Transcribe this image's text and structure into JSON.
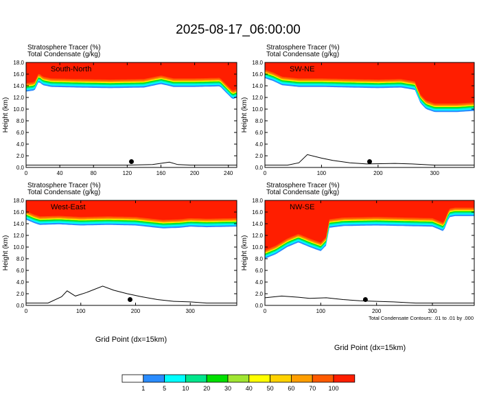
{
  "figure": {
    "title": "2025-08-17_06:00:00",
    "var1": "Stratosphere Tracer   (%)",
    "var2": "Total Condensate   (g/kg)",
    "xlabel": "Grid Point (dx=15km)",
    "footnote": "Total Condensate Contours: .01 to .01 by .000"
  },
  "colorbar": {
    "levels": [
      "1",
      "5",
      "10",
      "20",
      "30",
      "40",
      "50",
      "60",
      "70",
      "100"
    ],
    "colors": [
      "#ffffff",
      "#2a8cff",
      "#00ffff",
      "#00e68c",
      "#00e000",
      "#a0e632",
      "#ffff00",
      "#ffd200",
      "#ff9e00",
      "#ff5a00",
      "#ff1e00"
    ]
  },
  "chart_data": [
    {
      "type": "heatmap",
      "title": "South-North",
      "ylabel": "Height (km)",
      "xlim": [
        0,
        250
      ],
      "ylim": [
        0,
        18
      ],
      "xticks": [
        "0",
        "40",
        "80",
        "120",
        "160",
        "200",
        "240"
      ],
      "xtick_values": [
        0,
        40,
        80,
        120,
        160,
        200,
        240
      ],
      "yticks": [
        "0.0",
        "2.0",
        "4.0",
        "6.0",
        "8.0",
        "10.0",
        "12.0",
        "14.0",
        "16.0",
        "18.0"
      ],
      "tropopause_km": {
        "x": [
          0,
          10,
          15,
          20,
          30,
          60,
          100,
          140,
          160,
          175,
          200,
          230,
          245,
          250
        ],
        "y": [
          13.5,
          13.7,
          15.2,
          14.6,
          14.3,
          14.2,
          14.1,
          14.2,
          14.8,
          14.3,
          14.3,
          14.4,
          12.2,
          12.5
        ]
      },
      "terrain_km": {
        "x": [
          0,
          60,
          120,
          150,
          170,
          180,
          195,
          210,
          250
        ],
        "y": [
          0.4,
          0.4,
          0.4,
          0.5,
          0.9,
          0.5,
          0.4,
          0.4,
          0.4
        ]
      },
      "marker": {
        "x": 125,
        "y": 1.0
      }
    },
    {
      "type": "heatmap",
      "title": "SW-NE",
      "ylabel": "Height (km)",
      "xlim": [
        0,
        370
      ],
      "ylim": [
        0,
        18
      ],
      "xticks": [
        "0",
        "100",
        "200",
        "300"
      ],
      "xtick_values": [
        0,
        100,
        200,
        300
      ],
      "yticks": [
        "0.0",
        "2.0",
        "4.0",
        "6.0",
        "8.0",
        "10.0",
        "12.0",
        "14.0",
        "16.0",
        "18.0"
      ],
      "tropopause_km": {
        "x": [
          0,
          15,
          30,
          60,
          100,
          150,
          200,
          240,
          265,
          275,
          285,
          300,
          340,
          370
        ],
        "y": [
          15.8,
          15.3,
          14.6,
          14.3,
          14.3,
          14.2,
          14.1,
          14.2,
          13.8,
          11.5,
          10.5,
          10.0,
          10.0,
          10.2
        ]
      },
      "terrain_km": {
        "x": [
          0,
          40,
          60,
          75,
          100,
          120,
          150,
          180,
          230,
          260,
          300,
          340,
          370
        ],
        "y": [
          0.4,
          0.4,
          0.8,
          2.2,
          1.6,
          1.2,
          0.8,
          0.6,
          0.7,
          0.6,
          0.4,
          0.4,
          0.4
        ]
      },
      "marker": {
        "x": 185,
        "y": 1.0
      }
    },
    {
      "type": "heatmap",
      "title": "West-East",
      "ylabel": "Height (km)",
      "xlim": [
        0,
        385
      ],
      "ylim": [
        0,
        18
      ],
      "xticks": [
        "0",
        "100",
        "200",
        "300"
      ],
      "xtick_values": [
        0,
        100,
        200,
        300
      ],
      "yticks": [
        "0.0",
        "2.0",
        "4.0",
        "6.0",
        "8.0",
        "10.0",
        "12.0",
        "14.0",
        "16.0",
        "18.0"
      ],
      "tropopause_km": {
        "x": [
          0,
          15,
          25,
          60,
          100,
          150,
          200,
          250,
          280,
          300,
          330,
          385
        ],
        "y": [
          15.2,
          14.6,
          14.3,
          14.4,
          14.2,
          14.3,
          14.2,
          13.7,
          13.8,
          14.0,
          13.9,
          14.0
        ]
      },
      "terrain_km": {
        "x": [
          0,
          40,
          65,
          75,
          90,
          110,
          140,
          160,
          185,
          210,
          240,
          270,
          300,
          330,
          385
        ],
        "y": [
          0.4,
          0.4,
          1.5,
          2.5,
          1.6,
          2.2,
          3.3,
          2.6,
          2.0,
          1.5,
          1.0,
          0.7,
          0.6,
          0.4,
          0.4
        ]
      },
      "marker": {
        "x": 190,
        "y": 1.0
      }
    },
    {
      "type": "heatmap",
      "title": "NW-SE",
      "ylabel": "Height (km)",
      "xlim": [
        0,
        375
      ],
      "ylim": [
        0,
        18
      ],
      "xticks": [
        "0",
        "100",
        "200",
        "300"
      ],
      "xtick_values": [
        0,
        100,
        200,
        300
      ],
      "yticks": [
        "0.0",
        "2.0",
        "4.0",
        "6.0",
        "8.0",
        "10.0",
        "12.0",
        "14.0",
        "16.0",
        "18.0"
      ],
      "tropopause_km": {
        "x": [
          0,
          20,
          40,
          60,
          80,
          100,
          110,
          115,
          140,
          200,
          300,
          320,
          330,
          340,
          375
        ],
        "y": [
          8.5,
          9.3,
          10.5,
          11.3,
          10.5,
          9.8,
          10.8,
          13.8,
          14.1,
          14.2,
          14.0,
          13.2,
          15.6,
          15.8,
          15.8
        ]
      },
      "terrain_km": {
        "x": [
          0,
          30,
          60,
          80,
          110,
          140,
          170,
          200,
          230,
          270,
          300,
          375
        ],
        "y": [
          1.3,
          1.6,
          1.4,
          1.2,
          1.3,
          1.0,
          0.8,
          0.7,
          0.6,
          0.4,
          0.4,
          0.4
        ]
      },
      "marker": {
        "x": 180,
        "y": 1.0
      }
    }
  ]
}
